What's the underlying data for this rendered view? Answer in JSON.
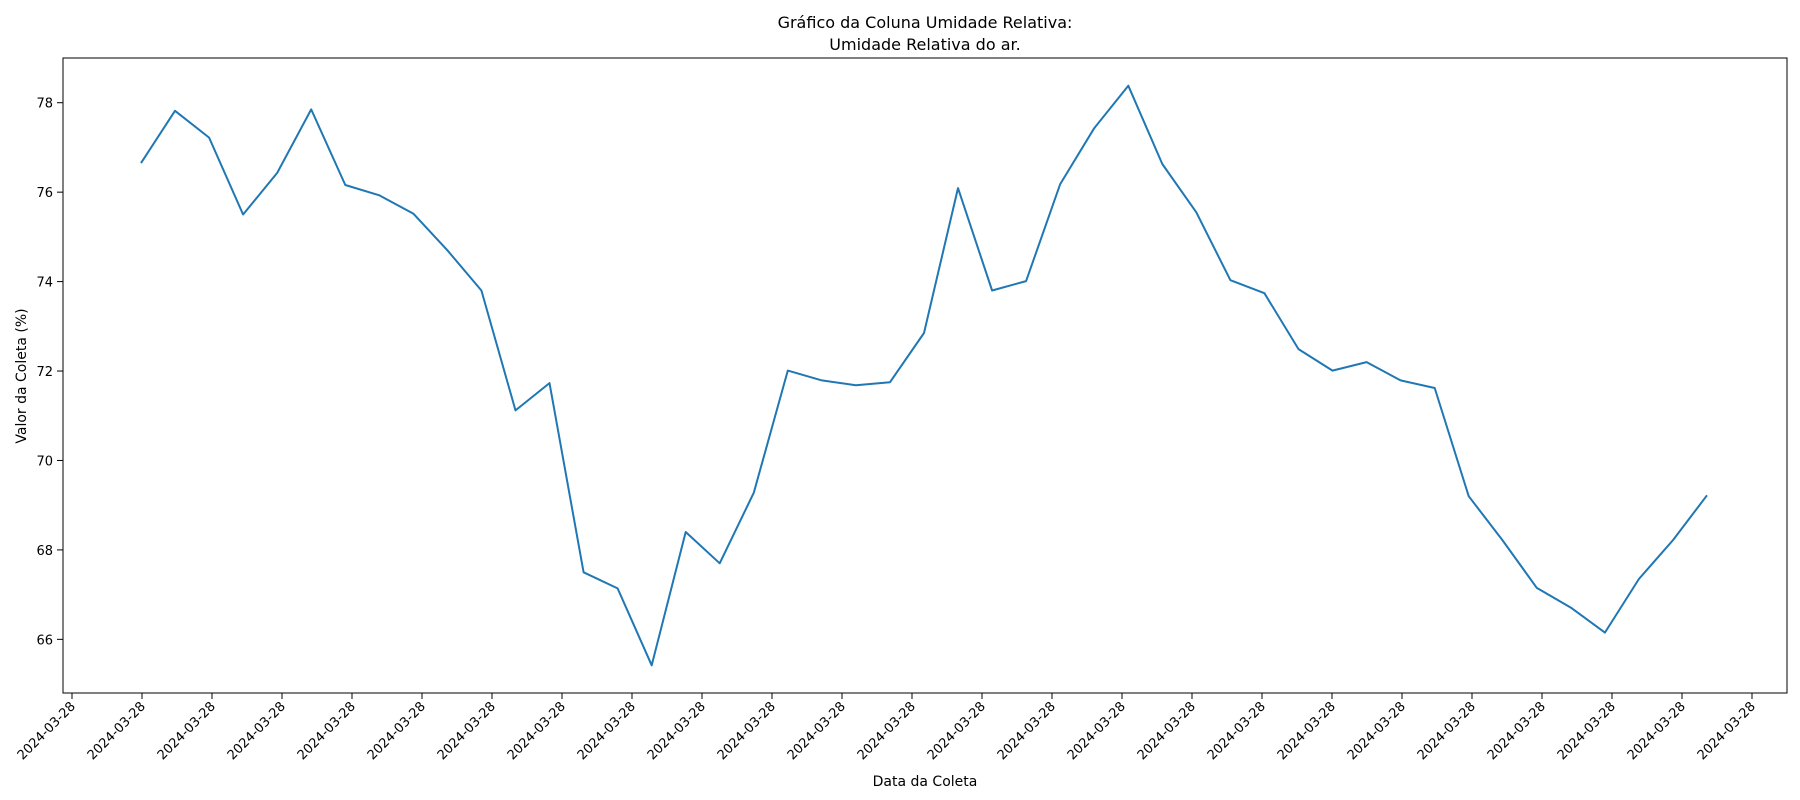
{
  "chart_data": {
    "type": "line",
    "title_line1": "Gráfico da Coluna Umidade Relativa:",
    "title_line2": "Umidade Relativa do ar.",
    "xlabel": "Data da Coleta",
    "ylabel": "Valor da Coleta (%)",
    "x_tick_labels": [
      "2024-03-28",
      "2024-03-28",
      "2024-03-28",
      "2024-03-28",
      "2024-03-28",
      "2024-03-28",
      "2024-03-28",
      "2024-03-28",
      "2024-03-28",
      "2024-03-28",
      "2024-03-28",
      "2024-03-28",
      "2024-03-28",
      "2024-03-28",
      "2024-03-28",
      "2024-03-28",
      "2024-03-28",
      "2024-03-28",
      "2024-03-28",
      "2024-03-28",
      "2024-03-28",
      "2024-03-28",
      "2024-03-28",
      "2024-03-28",
      "2024-03-28"
    ],
    "y_ticks": [
      66,
      68,
      70,
      72,
      74,
      76,
      78
    ],
    "ylim": [
      64.8,
      79.0
    ],
    "grid": false,
    "legend": "none",
    "series": [
      {
        "color": "#1f77b4",
        "values": [
          76.65,
          77.82,
          77.22,
          75.5,
          76.43,
          77.85,
          76.16,
          75.93,
          75.52,
          74.7,
          73.8,
          71.12,
          71.73,
          67.5,
          67.14,
          65.42,
          68.4,
          67.7,
          69.28,
          72.01,
          71.79,
          71.68,
          71.75,
          72.85,
          76.09,
          73.8,
          74.01,
          76.18,
          77.43,
          78.38,
          76.63,
          75.55,
          74.03,
          73.74,
          72.49,
          72.01,
          72.2,
          71.79,
          71.62,
          69.2,
          68.21,
          67.15,
          66.71,
          66.15,
          67.35,
          68.22,
          69.22
        ]
      }
    ]
  }
}
